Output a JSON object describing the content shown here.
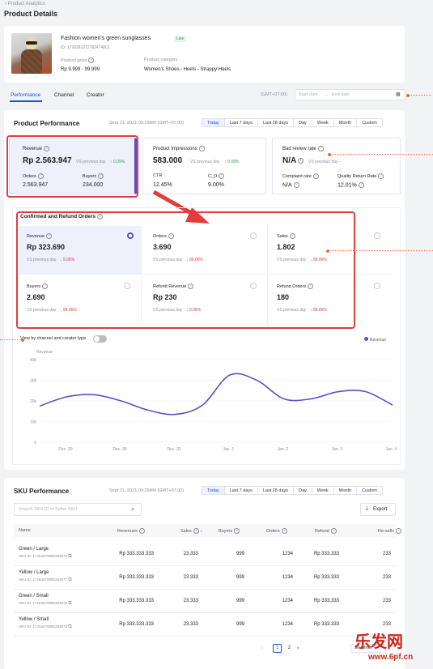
{
  "header": {
    "back_label": "Product Analytics",
    "title": "Product Details"
  },
  "product": {
    "name": "Fashion women's green sunglasses",
    "status": "Live",
    "id": "ID: 1729382372782474801",
    "price_label": "Product price",
    "price": "Rp 9.999 - 99.999",
    "category_label": "Product category",
    "category": "Women's Shoes - Heels - Strappy Heels"
  },
  "tabs": [
    "Performance",
    "Channel",
    "Creator"
  ],
  "date_filter": {
    "timezone": "(GMT+07:00)",
    "start_placeholder": "Start date",
    "sep": "→",
    "end_placeholder": "End date"
  },
  "performance": {
    "title": "Product Performance",
    "timestamp": "Sept 21, 2021 09:29AM (GMT+07:00)",
    "ranges": [
      "Today",
      "Last 7 days",
      "Last 28 days",
      "Day",
      "Week",
      "Month",
      "Custom"
    ],
    "revenue": {
      "label": "Revenue",
      "value": "Rp 2.563.947",
      "vs": "VS previous day",
      "delta": "0.09%",
      "orders_label": "Orders",
      "orders": "2.563.947",
      "buyers_label": "Buyers",
      "buyers": "234.000"
    },
    "impressions": {
      "label": "Product Impressions",
      "value": "583.000",
      "vs": "VS previous day",
      "delta": "0.09%",
      "ctr_label": "CTR",
      "ctr": "12.45%",
      "co_label": "C_O",
      "co": "9.00%"
    },
    "bad_review": {
      "label": "Bad review rate",
      "value": "N/A",
      "vs": "VS previous day",
      "delta": "--",
      "complaint_label": "Complaint rate",
      "complaint": "N/A",
      "return_label": "Quality Return Rate",
      "return": "12.01%"
    }
  },
  "confirmed": {
    "title": "Confirmed and Refund Orders",
    "cells": [
      {
        "label": "Revenue",
        "value": "Rp 323.690",
        "vs": "VS previous day",
        "delta": "9.06%"
      },
      {
        "label": "Orders",
        "value": "3.690",
        "vs": "VS previous day",
        "delta": "99.06%"
      },
      {
        "label": "Sales",
        "value": "1.802",
        "vs": "VS previous day",
        "delta": "99.06%"
      },
      {
        "label": "Buyers",
        "value": "2.690",
        "vs": "VS previous day",
        "delta": "99.06%"
      },
      {
        "label": "Refund Revenue",
        "value": "Rp 230",
        "vs": "VS previous day",
        "delta": "9.06%"
      },
      {
        "label": "Refund Orders",
        "value": "180",
        "vs": "VS previous day",
        "delta": "99.06%"
      }
    ],
    "toggle_label": "View by channel and creator type"
  },
  "chart_data": {
    "type": "line",
    "ylabel": "Revenue",
    "yticks": [
      "40k",
      "30k",
      "20k",
      "10k",
      "0"
    ],
    "ylim": [
      0,
      40000
    ],
    "categories": [
      "Dec. 29",
      "Dec. 30",
      "Dec. 31",
      "Jan. 1",
      "Jan. 2",
      "Jan. 3",
      "Jan. 4"
    ],
    "x": [
      0,
      0.5,
      1,
      1.5,
      2,
      2.5,
      3,
      3.5,
      4,
      4.5,
      5,
      5.5,
      6,
      6.5
    ],
    "series": [
      {
        "name": "Revenue",
        "color": "#5b4fc9",
        "values": [
          17500,
          22000,
          23000,
          20000,
          15500,
          13500,
          18000,
          32500,
          30000,
          21000,
          21000,
          24500,
          24500,
          18000
        ]
      }
    ]
  },
  "sku": {
    "title": "SKU Performance",
    "timestamp": "Sept 21, 2021 09:29AM (GMT+07:00)",
    "ranges": [
      "Today",
      "Last 7 days",
      "Last 28 days",
      "Day",
      "Week",
      "Month",
      "Custom"
    ],
    "search_placeholder": "Search SKU ID or Seller SKU",
    "export_label": "Export",
    "columns": [
      "Name",
      "Revenues",
      "Sales",
      "Buyers",
      "Orders",
      "Refund",
      "Re-sells"
    ],
    "rows": [
      {
        "name": "Green / Large",
        "sku": "SKU ID: 1726467898028397​6",
        "revenue": "Rp 333.333.333",
        "sales": "23.333",
        "buyers": "999",
        "orders": "1234",
        "refund": "Rp 333.333",
        "resells": "233"
      },
      {
        "name": "Yellow / Large",
        "sku": "SKU ID: 17264678980283977",
        "revenue": "Rp 333.333.333",
        "sales": "23.333",
        "buyers": "999",
        "orders": "1234",
        "refund": "Rp 333.333",
        "resells": "233"
      },
      {
        "name": "Green / Small",
        "sku": "SKU ID: 17264678980283978",
        "revenue": "Rp 333.333.333",
        "sales": "23.333",
        "buyers": "999",
        "orders": "1234",
        "refund": "Rp 333.333",
        "resells": "233"
      },
      {
        "name": "Yellow / Small",
        "sku": "SKU ID: 17264678980283979",
        "revenue": "Rp 333.333.333",
        "sales": "23.333",
        "buyers": "999",
        "orders": "1234",
        "refund": "Rp 333.333",
        "resells": "233"
      }
    ],
    "pages": [
      "1",
      "2"
    ],
    "per_page": "10 items"
  }
}
